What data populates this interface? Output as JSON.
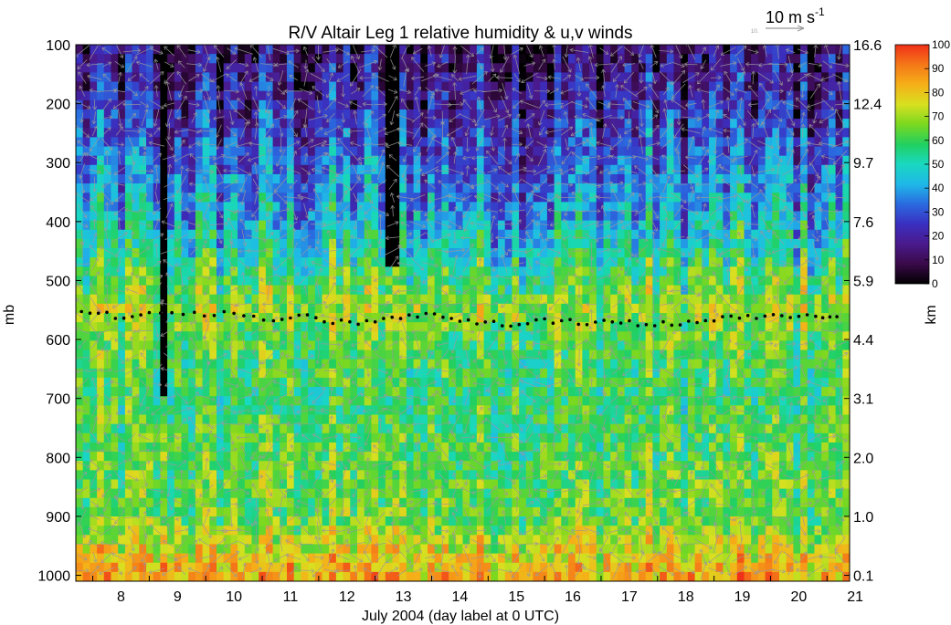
{
  "chart_data": {
    "type": "heatmap",
    "title": "R/V Altair Leg 1 relative humidity & u,v winds",
    "xlabel": "July 2004 (day label at 0 UTC)",
    "ylabel_left": "mb",
    "ylabel_right": "km",
    "x_ticks": [
      "8",
      "9",
      "10",
      "11",
      "12",
      "13",
      "14",
      "15",
      "16",
      "17",
      "18",
      "19",
      "20",
      "21"
    ],
    "x_range_days": [
      7.7,
      21.4
    ],
    "y_left_ticks": [
      "100",
      "200",
      "300",
      "400",
      "500",
      "600",
      "700",
      "800",
      "900",
      "1000"
    ],
    "y_left_range_mb": [
      100,
      1010
    ],
    "y_right_ticks": [
      "16.6",
      "12.4",
      "9.7",
      "7.6",
      "5.9",
      "4.4",
      "3.1",
      "2.0",
      "1.0",
      "0.1"
    ],
    "colorbar": {
      "ticks": [
        "100",
        "90",
        "80",
        "70",
        "60",
        "50",
        "40",
        "30",
        "20",
        "10",
        "0"
      ],
      "range": [
        0,
        100
      ],
      "colors": [
        "#000000",
        "#3a0a4a",
        "#4a1a8c",
        "#3a2fc0",
        "#2a6ae0",
        "#1fb8e8",
        "#19d8c0",
        "#22d060",
        "#7ad820",
        "#d8e020",
        "#f5b018",
        "#f57818",
        "#f03018"
      ]
    },
    "wind_scale": {
      "label": "10 m s",
      "exponent": "-1",
      "sub": "10."
    },
    "missing_columns_days": [
      9.3,
      13.3
    ],
    "rh_profile_summary": {
      "pressure_mb": [
        100,
        200,
        300,
        400,
        500,
        550,
        600,
        700,
        800,
        900,
        1000
      ],
      "typical_rh": [
        12,
        20,
        32,
        42,
        60,
        70,
        62,
        58,
        62,
        64,
        84
      ]
    },
    "freezing_level_mb": [
      [
        7.8,
        555
      ],
      [
        8.4,
        560
      ],
      [
        9.0,
        558
      ],
      [
        9.8,
        555
      ],
      [
        10.5,
        558
      ],
      [
        11.2,
        565
      ],
      [
        11.8,
        560
      ],
      [
        12.4,
        572
      ],
      [
        13.0,
        572
      ],
      [
        13.6,
        560
      ],
      [
        14.2,
        560
      ],
      [
        14.8,
        570
      ],
      [
        15.4,
        575
      ],
      [
        16.0,
        568
      ],
      [
        16.6,
        572
      ],
      [
        17.2,
        568
      ],
      [
        17.8,
        575
      ],
      [
        18.4,
        572
      ],
      [
        19.0,
        565
      ],
      [
        19.6,
        560
      ],
      [
        20.2,
        562
      ],
      [
        20.8,
        560
      ],
      [
        21.3,
        565
      ]
    ]
  }
}
